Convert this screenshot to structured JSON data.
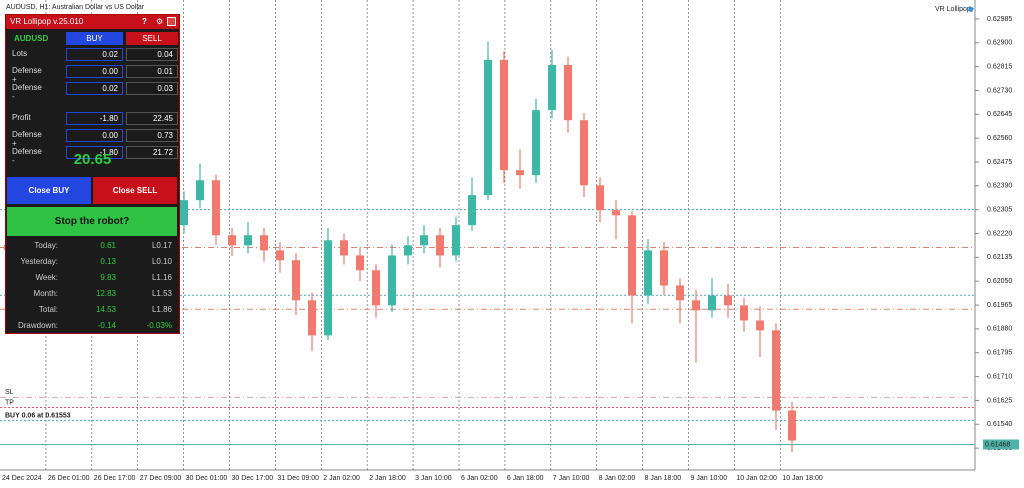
{
  "header": {
    "title": "AUDUSD, H1:  Australian Dollar vs US Dollar",
    "robot": "VR Lollipop"
  },
  "panel": {
    "title": "VR Lollipop v.25.010",
    "help": "?",
    "symbol": "AUDUSD",
    "buy": "BUY",
    "sell": "SELL",
    "rows": [
      [
        "Lots",
        "0.02",
        "0.04"
      ],
      [
        "Defense +",
        "0.00",
        "0.01"
      ],
      [
        "Defense -",
        "0.02",
        "0.03"
      ],
      [
        "Profit",
        "-1.80",
        "22.45"
      ],
      [
        "Defense +",
        "0.00",
        "0.73"
      ],
      [
        "Defense -",
        "-1.80",
        "21.72"
      ]
    ],
    "total": "20.65",
    "close_buy": "Close BUY",
    "close_sell": "Close SELL",
    "stop": "Stop the robot?",
    "stats": [
      [
        "Today:",
        "0.61",
        "L0.17"
      ],
      [
        "Yesterday:",
        "0.13",
        "L0.10"
      ],
      [
        "Week:",
        "9.83",
        "L1.16"
      ],
      [
        "Month:",
        "12.83",
        "L1.53"
      ],
      [
        "Total:",
        "14.53",
        "L1.86"
      ],
      [
        "Drawdown:",
        "-0.14",
        "-0.03%"
      ]
    ]
  },
  "chart": {
    "type": "candlestick",
    "up_color": "#3fb7a6",
    "down_color": "#f07a6e",
    "ylim": [
      0.61377,
      0.63024
    ],
    "yticks": [
      {
        "value": 0.62985,
        "label": "0.62985"
      },
      {
        "value": 0.629,
        "label": "0.62900"
      },
      {
        "value": 0.62815,
        "label": "0.62815"
      },
      {
        "value": 0.6273,
        "label": "0.62730"
      },
      {
        "value": 0.62645,
        "label": "0.62645"
      },
      {
        "value": 0.6256,
        "label": "0.62560"
      },
      {
        "value": 0.62475,
        "label": "0.62475"
      },
      {
        "value": 0.6239,
        "label": "0.62390"
      },
      {
        "value": 0.62305,
        "label": "0.62305"
      },
      {
        "value": 0.6222,
        "label": "0.62220"
      },
      {
        "value": 0.62135,
        "label": "0.62135"
      },
      {
        "value": 0.6205,
        "label": "0.62050"
      },
      {
        "value": 0.61965,
        "label": "0.61965"
      },
      {
        "value": 0.6188,
        "label": "0.61880"
      },
      {
        "value": 0.61795,
        "label": "0.61795"
      },
      {
        "value": 0.6171,
        "label": "0.61710"
      },
      {
        "value": 0.61625,
        "label": "0.61625"
      },
      {
        "value": 0.6154,
        "label": "0.61540"
      },
      {
        "value": 0.61455,
        "label": "0.61455"
      }
    ],
    "xlabels": [
      "24 Dec 2024",
      "26 Dec 01:00",
      "26 Dec 17:00",
      "27 Dec 09:00",
      "30 Dec 01:00",
      "30 Dec 17:00",
      "31 Dec 09:00",
      "2 Jan 02:00",
      "2 Jan 18:00",
      "3 Jan 10:00",
      "6 Jan 02:00",
      "6 Jan 18:00",
      "7 Jan 10:00",
      "8 Jan 02:00",
      "8 Jan 18:00",
      "9 Jan 10:00",
      "10 Jan 02:00",
      "10 Jan 18:00"
    ],
    "grid": true,
    "candles": [
      [
        0.6218,
        0.6224,
        0.6212,
        0.6216
      ],
      [
        0.6216,
        0.6226,
        0.6214,
        0.62232
      ],
      [
        0.62232,
        0.6246,
        0.6221,
        0.62339
      ],
      [
        0.62339,
        0.6238,
        0.6227,
        0.62303
      ],
      [
        0.62303,
        0.6233,
        0.622,
        0.6225
      ],
      [
        0.6225,
        0.6236,
        0.6223,
        0.62321
      ],
      [
        0.62321,
        0.6235,
        0.6225,
        0.62285
      ],
      [
        0.62285,
        0.6238,
        0.6226,
        0.62339
      ],
      [
        0.62339,
        0.6236,
        0.6215,
        0.62178
      ],
      [
        0.62178,
        0.6223,
        0.6214,
        0.62196
      ],
      [
        0.62196,
        0.6228,
        0.6217,
        0.6225
      ],
      [
        0.6225,
        0.6237,
        0.6222,
        0.62339
      ],
      [
        0.62339,
        0.6247,
        0.6231,
        0.6241
      ],
      [
        0.6241,
        0.6243,
        0.6218,
        0.62214
      ],
      [
        0.62214,
        0.6224,
        0.6214,
        0.62178
      ],
      [
        0.62178,
        0.6226,
        0.6215,
        0.62214
      ],
      [
        0.62214,
        0.6224,
        0.6212,
        0.6216
      ],
      [
        0.6216,
        0.6219,
        0.6208,
        0.62125
      ],
      [
        0.62125,
        0.6215,
        0.6193,
        0.61982
      ],
      [
        0.61982,
        0.6201,
        0.618,
        0.61857
      ],
      [
        0.61857,
        0.6224,
        0.6184,
        0.62196
      ],
      [
        0.62196,
        0.6222,
        0.6211,
        0.62142
      ],
      [
        0.62142,
        0.6217,
        0.6205,
        0.62089
      ],
      [
        0.62089,
        0.6211,
        0.6192,
        0.61964
      ],
      [
        0.61964,
        0.6218,
        0.6194,
        0.62142
      ],
      [
        0.62142,
        0.6221,
        0.6211,
        0.62178
      ],
      [
        0.62178,
        0.6225,
        0.6215,
        0.62214
      ],
      [
        0.62214,
        0.6224,
        0.621,
        0.62142
      ],
      [
        0.62142,
        0.6228,
        0.6212,
        0.6225
      ],
      [
        0.6225,
        0.6242,
        0.6223,
        0.62357
      ],
      [
        0.62357,
        0.62905,
        0.6234,
        0.62839
      ],
      [
        0.62839,
        0.6287,
        0.624,
        0.62446
      ],
      [
        0.62446,
        0.6252,
        0.6238,
        0.62428
      ],
      [
        0.62428,
        0.627,
        0.624,
        0.6266
      ],
      [
        0.6266,
        0.62875,
        0.6263,
        0.62821
      ],
      [
        0.62821,
        0.6285,
        0.6258,
        0.62624
      ],
      [
        0.62624,
        0.6265,
        0.6235,
        0.62392
      ],
      [
        0.62392,
        0.6242,
        0.6226,
        0.62303
      ],
      [
        0.62303,
        0.6234,
        0.622,
        0.62285
      ],
      [
        0.62285,
        0.623,
        0.619,
        0.61999
      ],
      [
        0.61999,
        0.622,
        0.6197,
        0.6216
      ],
      [
        0.6216,
        0.6219,
        0.62,
        0.62035
      ],
      [
        0.62035,
        0.6206,
        0.619,
        0.61982
      ],
      [
        0.61982,
        0.6202,
        0.6176,
        0.61946
      ],
      [
        0.61946,
        0.6206,
        0.6192,
        0.61999
      ],
      [
        0.61999,
        0.6204,
        0.6192,
        0.61964
      ],
      [
        0.61964,
        0.6199,
        0.6187,
        0.6191
      ],
      [
        0.6191,
        0.6196,
        0.6178,
        0.61875
      ],
      [
        0.61875,
        0.619,
        0.6152,
        0.61589
      ],
      [
        0.61589,
        0.6162,
        0.6144,
        0.61482
      ]
    ],
    "levels": [
      {
        "value": 0.62305,
        "color": "#4aa6c9",
        "style": "dotted"
      },
      {
        "value": 0.6217,
        "color": "#e08070",
        "style": "dashdot"
      },
      {
        "value": 0.62,
        "color": "#4aa6c9",
        "style": "dotted"
      },
      {
        "value": 0.6195,
        "color": "#e08070",
        "style": "dashdot"
      },
      {
        "value": 0.61636,
        "color": "#e0a0b0",
        "style": "dashdot",
        "label": "SL"
      },
      {
        "value": 0.616,
        "color": "#e06060",
        "style": "dotted",
        "label": "TP"
      },
      {
        "value": 0.61553,
        "color": "#4aa6c9",
        "style": "dotted",
        "label": "BUY 0.06 at 0.61553"
      },
      {
        "value": 0.61468,
        "color": "#4fb3a9",
        "style": "solid",
        "axis_label": "0.61468"
      }
    ]
  }
}
